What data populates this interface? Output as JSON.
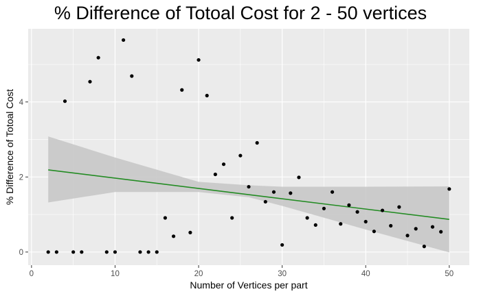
{
  "chart_data": {
    "type": "scatter",
    "title": "% Difference of Totoal Cost  for 2 - 50 vertices",
    "xlabel": "Number of Vertices per part",
    "ylabel": "% Difference of Totoal Cost",
    "xlim": [
      -0.4,
      52.4
    ],
    "ylim": [
      -0.35,
      5.95
    ],
    "x_ticks": [
      0,
      10,
      20,
      30,
      40,
      50
    ],
    "y_ticks": [
      0,
      2,
      4
    ],
    "grid": true,
    "legend": "none",
    "points": [
      {
        "x": 2,
        "y": 0
      },
      {
        "x": 3,
        "y": 0
      },
      {
        "x": 4,
        "y": 4.02
      },
      {
        "x": 5,
        "y": 0
      },
      {
        "x": 6,
        "y": 0
      },
      {
        "x": 7,
        "y": 4.54
      },
      {
        "x": 8,
        "y": 5.18
      },
      {
        "x": 9,
        "y": 0
      },
      {
        "x": 10,
        "y": 0
      },
      {
        "x": 11,
        "y": 5.65
      },
      {
        "x": 12,
        "y": 4.69
      },
      {
        "x": 13,
        "y": 0
      },
      {
        "x": 14,
        "y": 0
      },
      {
        "x": 15,
        "y": 0
      },
      {
        "x": 16,
        "y": 0.91
      },
      {
        "x": 17,
        "y": 0.42
      },
      {
        "x": 18,
        "y": 4.32
      },
      {
        "x": 19,
        "y": 0.52
      },
      {
        "x": 20,
        "y": 5.12
      },
      {
        "x": 21,
        "y": 4.17
      },
      {
        "x": 22,
        "y": 2.07
      },
      {
        "x": 23,
        "y": 2.34
      },
      {
        "x": 24,
        "y": 0.91
      },
      {
        "x": 25,
        "y": 2.57
      },
      {
        "x": 26,
        "y": 1.74
      },
      {
        "x": 27,
        "y": 2.91
      },
      {
        "x": 28,
        "y": 1.34
      },
      {
        "x": 29,
        "y": 1.6
      },
      {
        "x": 30,
        "y": 0.19
      },
      {
        "x": 31,
        "y": 1.57
      },
      {
        "x": 32,
        "y": 1.99
      },
      {
        "x": 33,
        "y": 0.91
      },
      {
        "x": 34,
        "y": 0.72
      },
      {
        "x": 35,
        "y": 1.16
      },
      {
        "x": 36,
        "y": 1.6
      },
      {
        "x": 37,
        "y": 0.75
      },
      {
        "x": 38,
        "y": 1.25
      },
      {
        "x": 39,
        "y": 1.07
      },
      {
        "x": 40,
        "y": 0.81
      },
      {
        "x": 41,
        "y": 0.55
      },
      {
        "x": 42,
        "y": 1.11
      },
      {
        "x": 43,
        "y": 0.7
      },
      {
        "x": 44,
        "y": 1.2
      },
      {
        "x": 45,
        "y": 0.44
      },
      {
        "x": 46,
        "y": 0.62
      },
      {
        "x": 47,
        "y": 0.15
      },
      {
        "x": 48,
        "y": 0.67
      },
      {
        "x": 49,
        "y": 0.54
      },
      {
        "x": 50,
        "y": 1.68
      }
    ],
    "trend_line": {
      "x": [
        2,
        50
      ],
      "y": [
        2.19,
        0.87
      ],
      "color": "#228B22"
    },
    "confidence_band": {
      "x": [
        2,
        10,
        20,
        26,
        30,
        40,
        50
      ],
      "lower": [
        1.32,
        1.6,
        1.6,
        1.46,
        1.23,
        0.6,
        -0.01
      ],
      "upper": [
        3.08,
        2.52,
        1.87,
        1.78,
        1.74,
        1.74,
        1.75
      ],
      "color": "#c8c8c8"
    },
    "colors": {
      "points": "#000000",
      "panel": "#ebebeb",
      "grid": "#ffffff"
    }
  }
}
